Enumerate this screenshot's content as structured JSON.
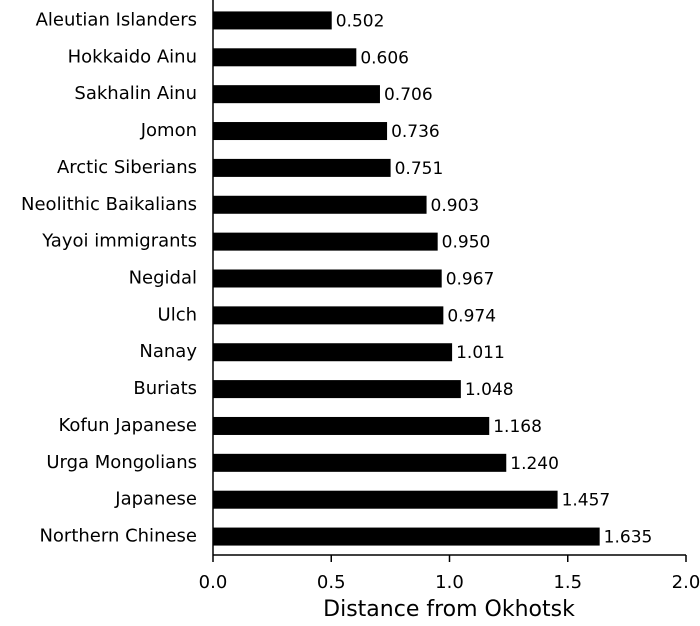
{
  "chart_data": {
    "type": "bar",
    "orientation": "horizontal",
    "color": "#000000",
    "xlabel": "Distance from Okhotsk",
    "categories": [
      "Aleutian Islanders",
      "Hokkaido Ainu",
      "Sakhalin Ainu",
      "Jomon",
      "Arctic Siberians",
      "Neolithic Baikalians",
      "Yayoi immigrants",
      "Negidal",
      "Ulch",
      "Nanay",
      "Buriats",
      "Kofun Japanese",
      "Urga Mongolians",
      "Japanese",
      "Northern Chinese"
    ],
    "values": [
      0.502,
      0.606,
      0.706,
      0.736,
      0.751,
      0.903,
      0.95,
      0.967,
      0.974,
      1.011,
      1.048,
      1.168,
      1.24,
      1.457,
      1.635
    ],
    "value_labels": [
      "0.502",
      "0.606",
      "0.706",
      "0.736",
      "0.751",
      "0.903",
      "0.950",
      "0.967",
      "0.974",
      "1.011",
      "1.048",
      "1.168",
      "1.240",
      "1.457",
      "1.635"
    ],
    "xlim": [
      0,
      2
    ],
    "xticks": [
      {
        "value": 0,
        "label": "0.0"
      },
      {
        "value": 0.5,
        "label": "0.5"
      },
      {
        "value": 1,
        "label": "1.0"
      },
      {
        "value": 1.5,
        "label": "1.5"
      },
      {
        "value": 2,
        "label": "2.0"
      }
    ],
    "grid": false
  }
}
